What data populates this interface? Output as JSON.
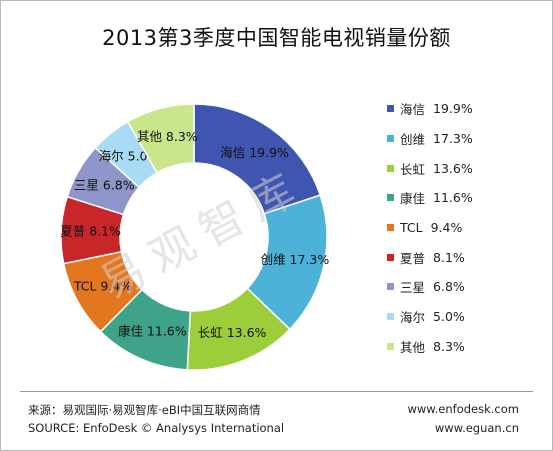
{
  "chart_data": {
    "type": "pie",
    "title": "2013第3季度中国智能电视销量份额",
    "donut": true,
    "slices": [
      {
        "name": "海信",
        "value": 19.9,
        "label": "19.9%",
        "color": "#3f55b0"
      },
      {
        "name": "创维",
        "value": 17.3,
        "label": "17.3%",
        "color": "#4cb2d8"
      },
      {
        "name": "长虹",
        "value": 13.6,
        "label": "13.6%",
        "color": "#9ccd3a"
      },
      {
        "name": "康佳",
        "value": 11.6,
        "label": "11.6%",
        "color": "#3fa38a"
      },
      {
        "name": "TCL",
        "value": 9.4,
        "label": "9.4%",
        "color": "#e3771f"
      },
      {
        "name": "夏普",
        "value": 8.1,
        "label": "8.1%",
        "color": "#c9262a"
      },
      {
        "name": "三星",
        "value": 6.8,
        "label": "6.8%",
        "color": "#8e95c8"
      },
      {
        "name": "海尔",
        "value": 5.0,
        "label": "5.0%",
        "color": "#a9dcf4"
      },
      {
        "name": "其他",
        "value": 8.3,
        "label": "8.3%",
        "color": "#c9e68c"
      }
    ],
    "legend_position": "right",
    "watermark": "易观智库"
  },
  "footer": {
    "source_cn": "来源：易观国际·易观智库·eBI中国互联网商情",
    "source_en": "SOURCE: EnfoDesk © Analysys International",
    "url1": "www.enfodesk.com",
    "url2": "www.eguan.cn"
  }
}
